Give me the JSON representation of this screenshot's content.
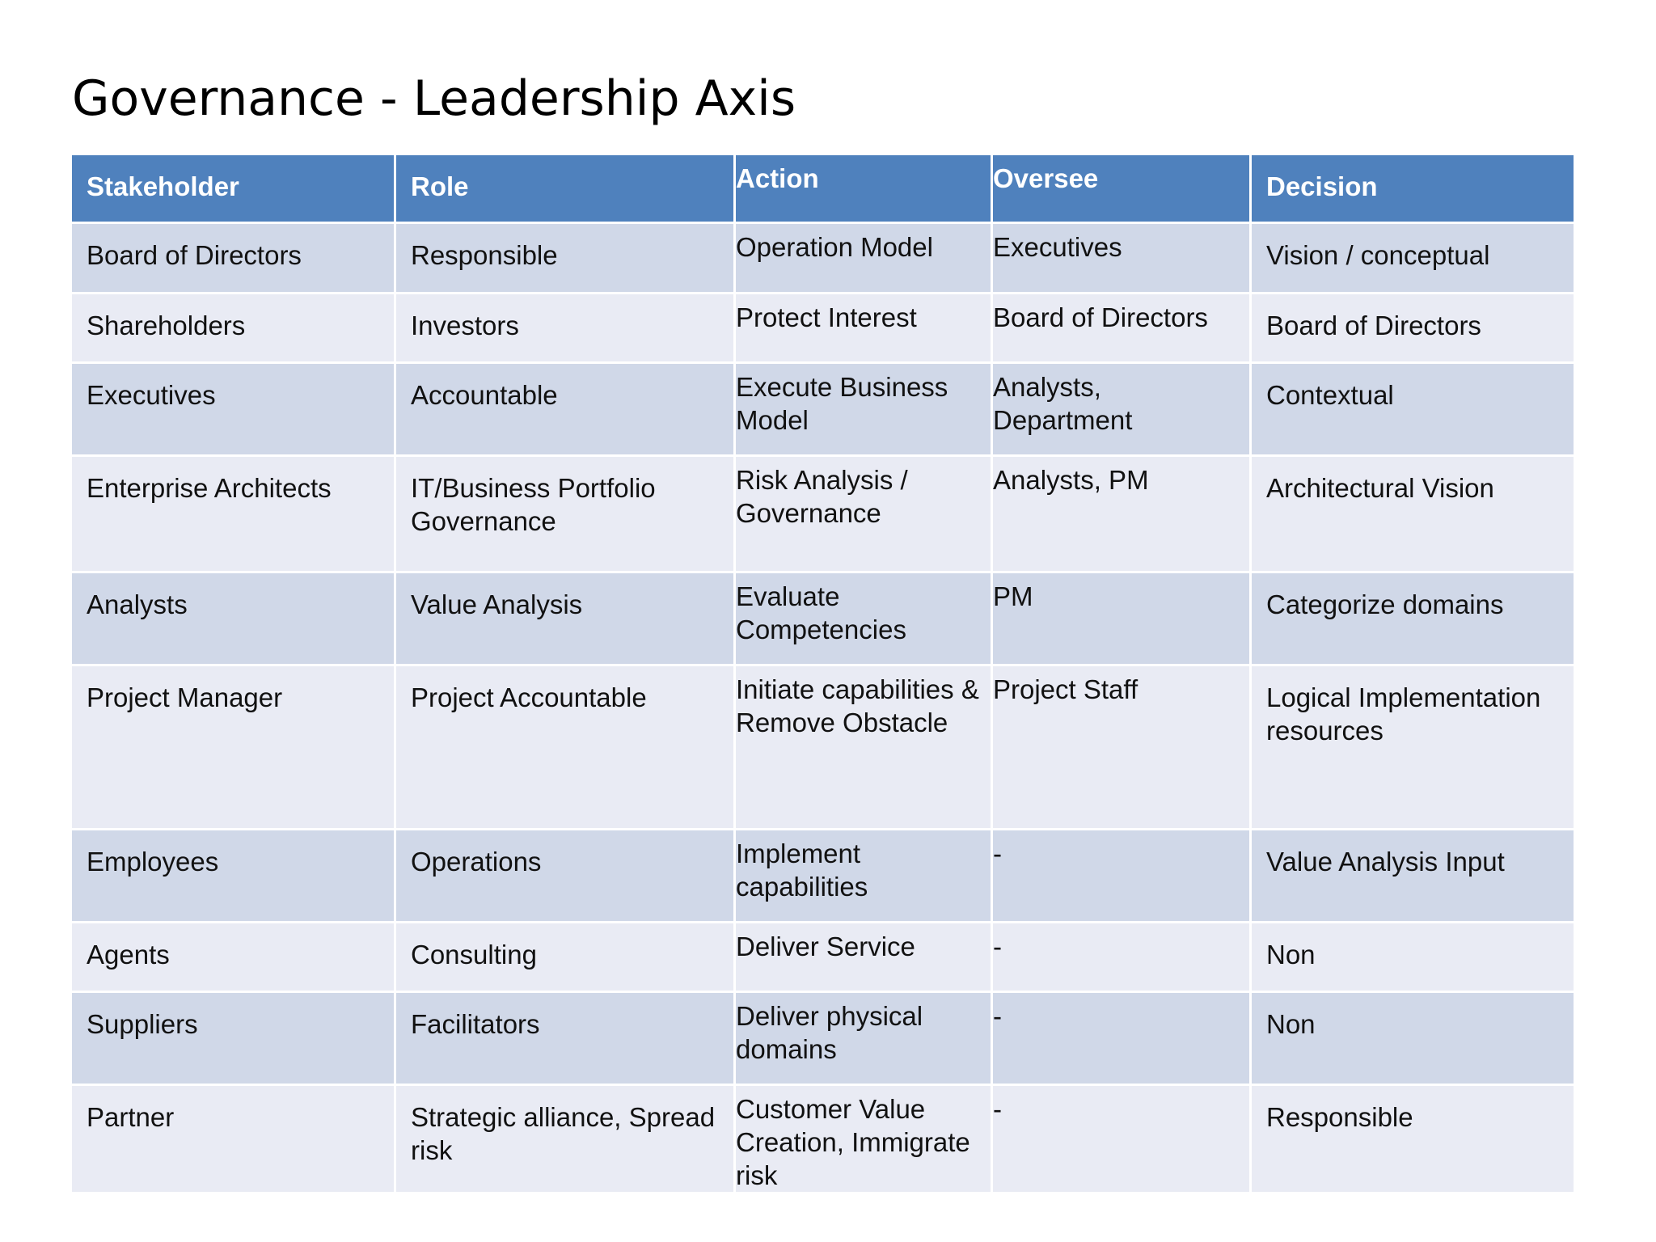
{
  "title": "Governance - Leadership Axis",
  "table": {
    "headers": [
      "Stakeholder",
      "Role",
      "Action",
      "Oversee",
      "Decision"
    ],
    "rows": [
      [
        "Board of Directors",
        "Responsible",
        "Operation Model",
        "Executives",
        "Vision / conceptual"
      ],
      [
        "Shareholders",
        "Investors",
        "Protect Interest",
        "Board of Directors",
        "Board of Directors"
      ],
      [
        "Executives",
        "Accountable",
        "Execute Business Model",
        "Analysts, Department",
        "Contextual"
      ],
      [
        "Enterprise Architects",
        "IT/Business Portfolio Governance",
        "Risk Analysis / Governance",
        "Analysts, PM",
        "Architectural Vision"
      ],
      [
        "Analysts",
        "Value Analysis",
        "Evaluate Competencies",
        "PM",
        "Categorize domains"
      ],
      [
        "Project Manager",
        "Project Accountable",
        "Initiate capabilities & Remove Obstacle",
        "Project Staff",
        "Logical Implementation resources"
      ],
      [
        "Employees",
        "Operations",
        "Implement capabilities",
        " -",
        "Value Analysis Input"
      ],
      [
        "Agents",
        "Consulting",
        "Deliver Service",
        "-",
        "Non"
      ],
      [
        "Suppliers",
        "Facilitators",
        "Deliver physical domains",
        "-",
        "Non"
      ],
      [
        "Partner",
        "Strategic alliance, Spread risk",
        "Customer Value Creation, Immigrate risk",
        "-",
        "Responsible"
      ]
    ]
  }
}
